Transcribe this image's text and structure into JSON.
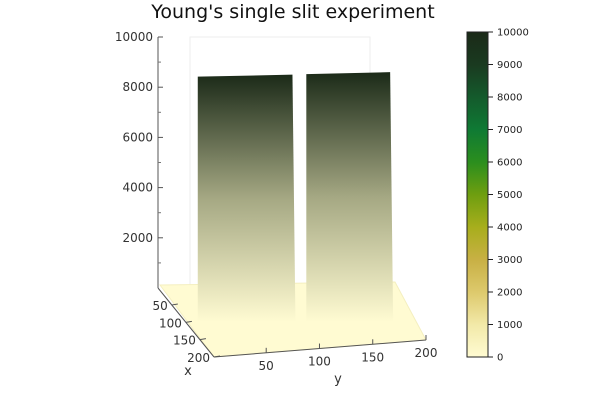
{
  "chart_data": {
    "type": "surface3d",
    "title": "Young's single slit experiment",
    "xlabel": "x",
    "ylabel": "y",
    "zlabel": "",
    "x_ticks": [
      "50",
      "100",
      "150",
      "200"
    ],
    "y_ticks": [
      "50",
      "100",
      "150",
      "200"
    ],
    "z_ticks": [
      "2000",
      "4000",
      "6000",
      "8000",
      "10000"
    ],
    "xlim": [
      1,
      200
    ],
    "ylim": [
      1,
      200
    ],
    "zlim": [
      0,
      10000
    ],
    "surface": {
      "description_levels": [
        {
          "y_range": [
            1,
            10
          ],
          "z": 0
        },
        {
          "y_range": [
            10,
            100
          ],
          "z": 8500
        },
        {
          "y_range": [
            100,
            110
          ],
          "z": 0
        },
        {
          "y_range": [
            110,
            190
          ],
          "z": 8600
        },
        {
          "y_range": [
            190,
            200
          ],
          "z": 0
        }
      ]
    },
    "colorbar": {
      "ticks": [
        "0",
        "1000",
        "2000",
        "3000",
        "4000",
        "5000",
        "6000",
        "7000",
        "8000",
        "9000",
        "10000"
      ],
      "range": [
        0,
        10000
      ],
      "colors": [
        "#fffbd2",
        "#f2e9a8",
        "#ddc96c",
        "#c8b044",
        "#a7ae1c",
        "#6e9e10",
        "#2b8e1e",
        "#0f7a34",
        "#145a2c",
        "#1a3a20",
        "#1b2a18"
      ]
    },
    "grid": true
  }
}
